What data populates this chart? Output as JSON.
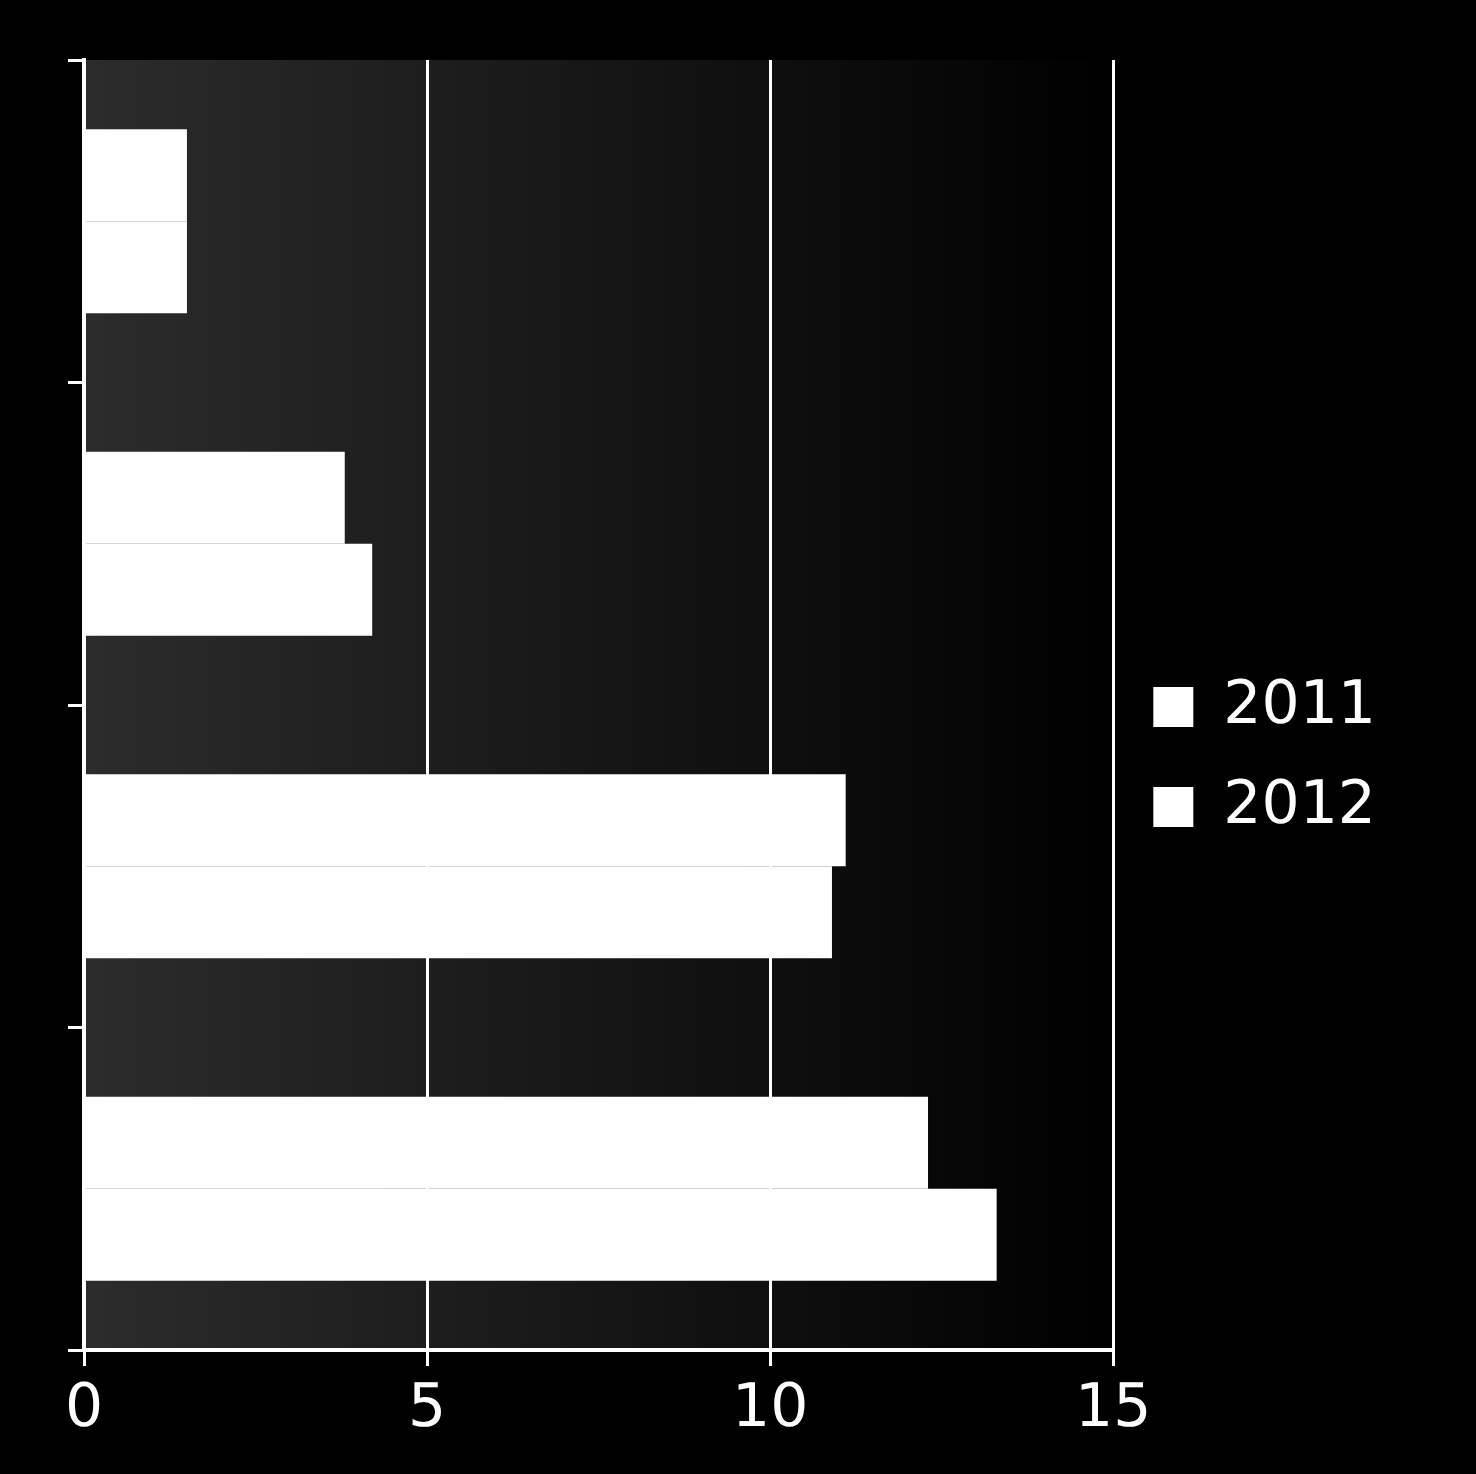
{
  "chart_data": {
    "type": "bar",
    "orientation": "horizontal",
    "categories": [
      null,
      null,
      null,
      null
    ],
    "series": [
      {
        "name": "2011",
        "color": "#ffffff",
        "values": [
          1.5,
          3.8,
          11.1,
          12.3
        ]
      },
      {
        "name": "2012",
        "color": "#ffffff",
        "values": [
          1.5,
          4.2,
          10.9,
          13.3
        ]
      }
    ],
    "xlim": [
      0,
      15
    ],
    "xticks": [
      0,
      5,
      10,
      15
    ],
    "grid": "x",
    "legend": "right"
  }
}
